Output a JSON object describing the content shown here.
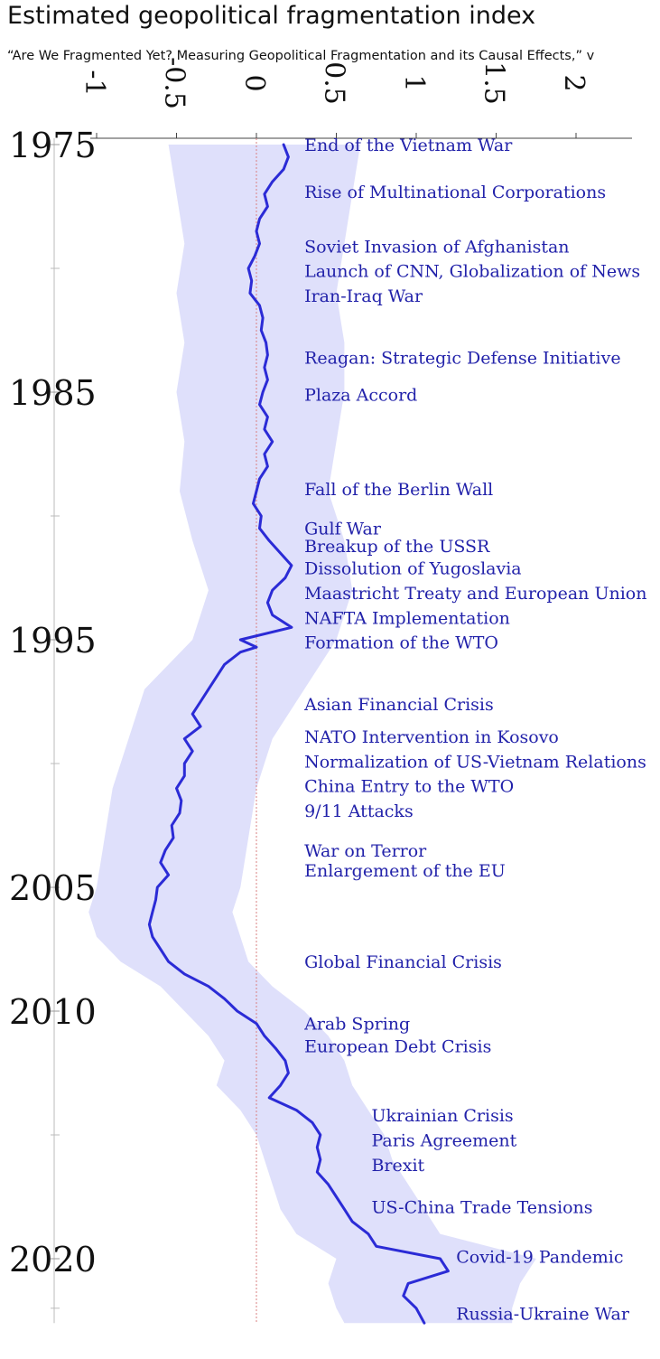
{
  "header": {
    "title": "Estimated geopolitical fragmentation index",
    "subtitle": "“Are We Fragmented Yet? Measuring Geopolitical Fragmentation and its Causal Effects,” v"
  },
  "chart_data": {
    "type": "line",
    "title": "Estimated geopolitical fragmentation index",
    "orientation": "vertical-time",
    "x_ticks": [
      "-1",
      "-0.5",
      "0",
      "0.5",
      "1",
      "1.5",
      "2"
    ],
    "x_range": [
      -1,
      2
    ],
    "y_labels": [
      "1975",
      "1985",
      "1995",
      "2005",
      "2010",
      "2020"
    ],
    "y_range": [
      1975,
      2022.6
    ],
    "grid": false,
    "reference_line": 0,
    "colors": {
      "line": "#2b2bd6",
      "band": "#dfe0fb",
      "text": "#2222aa",
      "zero_line": "#d98080"
    },
    "series": [
      {
        "values": [
          [
            1975.0,
            0.17
          ],
          [
            1975.5,
            0.2
          ],
          [
            1976.0,
            0.17
          ],
          [
            1976.5,
            0.1
          ],
          [
            1977.0,
            0.05
          ],
          [
            1977.5,
            0.07
          ],
          [
            1978.0,
            0.02
          ],
          [
            1978.5,
            0.0
          ],
          [
            1979.0,
            0.02
          ],
          [
            1979.5,
            -0.01
          ],
          [
            1980.0,
            -0.05
          ],
          [
            1980.5,
            -0.03
          ],
          [
            1981.0,
            -0.04
          ],
          [
            1981.5,
            0.02
          ],
          [
            1982.0,
            0.04
          ],
          [
            1982.5,
            0.03
          ],
          [
            1983.0,
            0.06
          ],
          [
            1983.5,
            0.07
          ],
          [
            1984.0,
            0.05
          ],
          [
            1984.5,
            0.07
          ],
          [
            1985.0,
            0.04
          ],
          [
            1985.5,
            0.02
          ],
          [
            1986.0,
            0.07
          ],
          [
            1986.5,
            0.05
          ],
          [
            1987.0,
            0.1
          ],
          [
            1987.5,
            0.05
          ],
          [
            1988.0,
            0.07
          ],
          [
            1988.5,
            0.02
          ],
          [
            1989.0,
            0.0
          ],
          [
            1989.5,
            -0.02
          ],
          [
            1990.0,
            0.03
          ],
          [
            1990.5,
            0.02
          ],
          [
            1991.0,
            0.08
          ],
          [
            1991.5,
            0.15
          ],
          [
            1992.0,
            0.22
          ],
          [
            1992.5,
            0.18
          ],
          [
            1993.0,
            0.1
          ],
          [
            1993.5,
            0.07
          ],
          [
            1994.0,
            0.1
          ],
          [
            1994.5,
            0.22
          ],
          [
            1995.0,
            -0.1
          ],
          [
            1995.3,
            0.0
          ],
          [
            1995.5,
            -0.1
          ],
          [
            1996.0,
            -0.2
          ],
          [
            1996.5,
            -0.25
          ],
          [
            1997.0,
            -0.3
          ],
          [
            1997.5,
            -0.35
          ],
          [
            1998.0,
            -0.4
          ],
          [
            1998.5,
            -0.35
          ],
          [
            1999.0,
            -0.45
          ],
          [
            1999.5,
            -0.4
          ],
          [
            2000.0,
            -0.45
          ],
          [
            2000.5,
            -0.45
          ],
          [
            2001.0,
            -0.5
          ],
          [
            2001.5,
            -0.47
          ],
          [
            2002.0,
            -0.48
          ],
          [
            2002.5,
            -0.53
          ],
          [
            2003.0,
            -0.52
          ],
          [
            2003.5,
            -0.57
          ],
          [
            2004.0,
            -0.6
          ],
          [
            2004.5,
            -0.55
          ],
          [
            2005.0,
            -0.62
          ],
          [
            2005.5,
            -0.63
          ],
          [
            2006.0,
            -0.65
          ],
          [
            2006.5,
            -0.67
          ],
          [
            2007.0,
            -0.65
          ],
          [
            2007.5,
            -0.6
          ],
          [
            2008.0,
            -0.55
          ],
          [
            2008.5,
            -0.45
          ],
          [
            2009.0,
            -0.3
          ],
          [
            2009.5,
            -0.2
          ],
          [
            2010.0,
            -0.12
          ],
          [
            2010.5,
            0.0
          ],
          [
            2011.0,
            0.05
          ],
          [
            2011.5,
            0.12
          ],
          [
            2012.0,
            0.18
          ],
          [
            2012.5,
            0.2
          ],
          [
            2013.0,
            0.15
          ],
          [
            2013.5,
            0.08
          ],
          [
            2014.0,
            0.25
          ],
          [
            2014.5,
            0.35
          ],
          [
            2015.0,
            0.4
          ],
          [
            2015.5,
            0.38
          ],
          [
            2016.0,
            0.4
          ],
          [
            2016.5,
            0.38
          ],
          [
            2017.0,
            0.45
          ],
          [
            2017.5,
            0.5
          ],
          [
            2018.0,
            0.55
          ],
          [
            2018.5,
            0.6
          ],
          [
            2019.0,
            0.7
          ],
          [
            2019.5,
            0.75
          ],
          [
            2020.0,
            1.15
          ],
          [
            2020.5,
            1.2
          ],
          [
            2021.0,
            0.95
          ],
          [
            2021.5,
            0.92
          ],
          [
            2022.0,
            1.0
          ],
          [
            2022.6,
            1.05
          ]
        ],
        "band_lower": [
          [
            1975,
            -0.55
          ],
          [
            1977,
            -0.5
          ],
          [
            1979,
            -0.45
          ],
          [
            1981,
            -0.5
          ],
          [
            1983,
            -0.45
          ],
          [
            1985,
            -0.5
          ],
          [
            1987,
            -0.45
          ],
          [
            1989,
            -0.48
          ],
          [
            1991,
            -0.4
          ],
          [
            1993,
            -0.3
          ],
          [
            1995,
            -0.4
          ],
          [
            1997,
            -0.7
          ],
          [
            1999,
            -0.8
          ],
          [
            2001,
            -0.9
          ],
          [
            2003,
            -0.95
          ],
          [
            2005,
            -1.0
          ],
          [
            2006,
            -1.05
          ],
          [
            2007,
            -1.0
          ],
          [
            2008,
            -0.85
          ],
          [
            2009,
            -0.6
          ],
          [
            2010,
            -0.45
          ],
          [
            2011,
            -0.3
          ],
          [
            2012,
            -0.2
          ],
          [
            2013,
            -0.25
          ],
          [
            2014,
            -0.1
          ],
          [
            2015,
            0.0
          ],
          [
            2016,
            0.05
          ],
          [
            2017,
            0.1
          ],
          [
            2018,
            0.15
          ],
          [
            2019,
            0.25
          ],
          [
            2020,
            0.5
          ],
          [
            2021,
            0.45
          ],
          [
            2022,
            0.5
          ],
          [
            2022.6,
            0.55
          ]
        ],
        "band_upper": [
          [
            1975,
            0.65
          ],
          [
            1977,
            0.6
          ],
          [
            1979,
            0.55
          ],
          [
            1981,
            0.5
          ],
          [
            1983,
            0.55
          ],
          [
            1985,
            0.55
          ],
          [
            1987,
            0.5
          ],
          [
            1989,
            0.45
          ],
          [
            1991,
            0.55
          ],
          [
            1993,
            0.6
          ],
          [
            1995,
            0.5
          ],
          [
            1997,
            0.3
          ],
          [
            1999,
            0.1
          ],
          [
            2001,
            0.0
          ],
          [
            2003,
            -0.05
          ],
          [
            2005,
            -0.1
          ],
          [
            2006,
            -0.15
          ],
          [
            2007,
            -0.1
          ],
          [
            2008,
            -0.05
          ],
          [
            2009,
            0.1
          ],
          [
            2010,
            0.3
          ],
          [
            2011,
            0.45
          ],
          [
            2012,
            0.55
          ],
          [
            2013,
            0.6
          ],
          [
            2014,
            0.7
          ],
          [
            2015,
            0.8
          ],
          [
            2016,
            0.85
          ],
          [
            2017,
            0.95
          ],
          [
            2018,
            1.05
          ],
          [
            2019,
            1.15
          ],
          [
            2020,
            1.75
          ],
          [
            2021,
            1.65
          ],
          [
            2022,
            1.6
          ],
          [
            2022.6,
            1.6
          ]
        ]
      }
    ],
    "events": [
      {
        "label": "End of the Vietnam War",
        "year": 1975.0,
        "x": 0.3
      },
      {
        "label": "Rise of Multinational Corporations",
        "year": 1976.9,
        "x": 0.3
      },
      {
        "label": "Soviet Invasion of Afghanistan",
        "year": 1979.1,
        "x": 0.3
      },
      {
        "label": "Launch of CNN, Globalization of News",
        "year": 1980.1,
        "x": 0.3
      },
      {
        "label": "Iran-Iraq War",
        "year": 1981.1,
        "x": 0.3
      },
      {
        "label": "Reagan: Strategic Defense Initiative",
        "year": 1983.6,
        "x": 0.3
      },
      {
        "label": "Plaza Accord",
        "year": 1985.1,
        "x": 0.3
      },
      {
        "label": "Fall of the Berlin Wall",
        "year": 1988.9,
        "x": 0.3
      },
      {
        "label": "Gulf War",
        "year": 1990.5,
        "x": 0.3
      },
      {
        "label": "Breakup of the USSR",
        "year": 1991.2,
        "x": 0.3
      },
      {
        "label": "Dissolution of Yugoslavia",
        "year": 1992.1,
        "x": 0.3
      },
      {
        "label": "Maastricht Treaty and European Union",
        "year": 1993.1,
        "x": 0.3
      },
      {
        "label": "NAFTA Implementation",
        "year": 1994.1,
        "x": 0.3
      },
      {
        "label": "Formation of the WTO",
        "year": 1995.1,
        "x": 0.3
      },
      {
        "label": "Asian Financial Crisis",
        "year": 1997.6,
        "x": 0.3
      },
      {
        "label": "NATO Intervention in Kosovo",
        "year": 1998.9,
        "x": 0.3
      },
      {
        "label": "Normalization of US-Vietnam Relations",
        "year": 1999.9,
        "x": 0.3
      },
      {
        "label": "China Entry to the WTO",
        "year": 2000.9,
        "x": 0.3
      },
      {
        "label": "9/11 Attacks",
        "year": 2001.9,
        "x": 0.3
      },
      {
        "label": "War on Terror",
        "year": 2003.5,
        "x": 0.3
      },
      {
        "label": "Enlargement of the EU",
        "year": 2004.3,
        "x": 0.3
      },
      {
        "label": "Global Financial Crisis",
        "year": 2008.0,
        "x": 0.3
      },
      {
        "label": "Arab Spring",
        "year": 2010.5,
        "x": 0.3
      },
      {
        "label": "European Debt Crisis",
        "year": 2011.4,
        "x": 0.3
      },
      {
        "label": "Ukrainian Crisis",
        "year": 2014.2,
        "x": 0.72
      },
      {
        "label": "Paris Agreement",
        "year": 2015.2,
        "x": 0.72
      },
      {
        "label": "Brexit",
        "year": 2016.2,
        "x": 0.72
      },
      {
        "label": "US-China Trade Tensions",
        "year": 2017.9,
        "x": 0.72
      },
      {
        "label": "Covid-19 Pandemic",
        "year": 2019.9,
        "x": 1.25
      },
      {
        "label": "Russia-Ukraine War",
        "year": 2022.2,
        "x": 1.25
      }
    ]
  }
}
